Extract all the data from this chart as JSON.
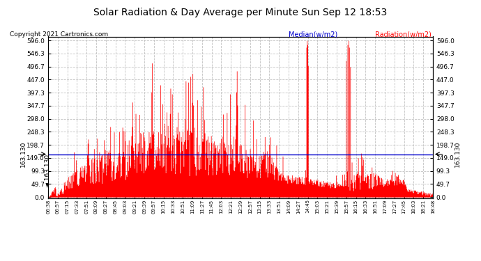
{
  "title": "Solar Radiation & Day Average per Minute Sun Sep 12 18:53",
  "copyright": "Copyright 2021 Cartronics.com",
  "median_label": "Median(w/m2)",
  "radiation_label": "Radiation(w/m2)",
  "median_value": 163.13,
  "median_label_text": "163.130",
  "ytick_labels": [
    "0.0",
    "49.7",
    "99.3",
    "149.0",
    "198.7",
    "248.3",
    "298.0",
    "347.7",
    "397.3",
    "447.0",
    "496.7",
    "546.3",
    "596.0"
  ],
  "ytick_values": [
    0.0,
    49.7,
    99.3,
    149.0,
    198.7,
    248.3,
    298.0,
    347.7,
    397.3,
    447.0,
    496.7,
    546.3,
    596.0
  ],
  "ymax": 596.0,
  "ymin": 0.0,
  "background_color": "#ffffff",
  "grid_color": "#bbbbbb",
  "bar_color": "#ff0000",
  "median_color": "#0000cc",
  "title_color": "#000000",
  "copyright_color": "#000000",
  "median_legend_color": "#0000cc",
  "radiation_legend_color": "#ff0000",
  "xtick_labels": [
    "06:38",
    "06:57",
    "07:15",
    "07:33",
    "07:51",
    "08:09",
    "08:27",
    "08:45",
    "09:03",
    "09:21",
    "09:39",
    "09:57",
    "10:15",
    "10:33",
    "10:51",
    "11:09",
    "11:27",
    "11:45",
    "12:03",
    "12:21",
    "12:39",
    "12:57",
    "13:15",
    "13:33",
    "13:51",
    "14:09",
    "14:27",
    "14:45",
    "15:03",
    "15:21",
    "15:39",
    "15:57",
    "16:15",
    "16:33",
    "16:51",
    "17:09",
    "17:27",
    "17:45",
    "18:03",
    "18:21",
    "18:48"
  ]
}
